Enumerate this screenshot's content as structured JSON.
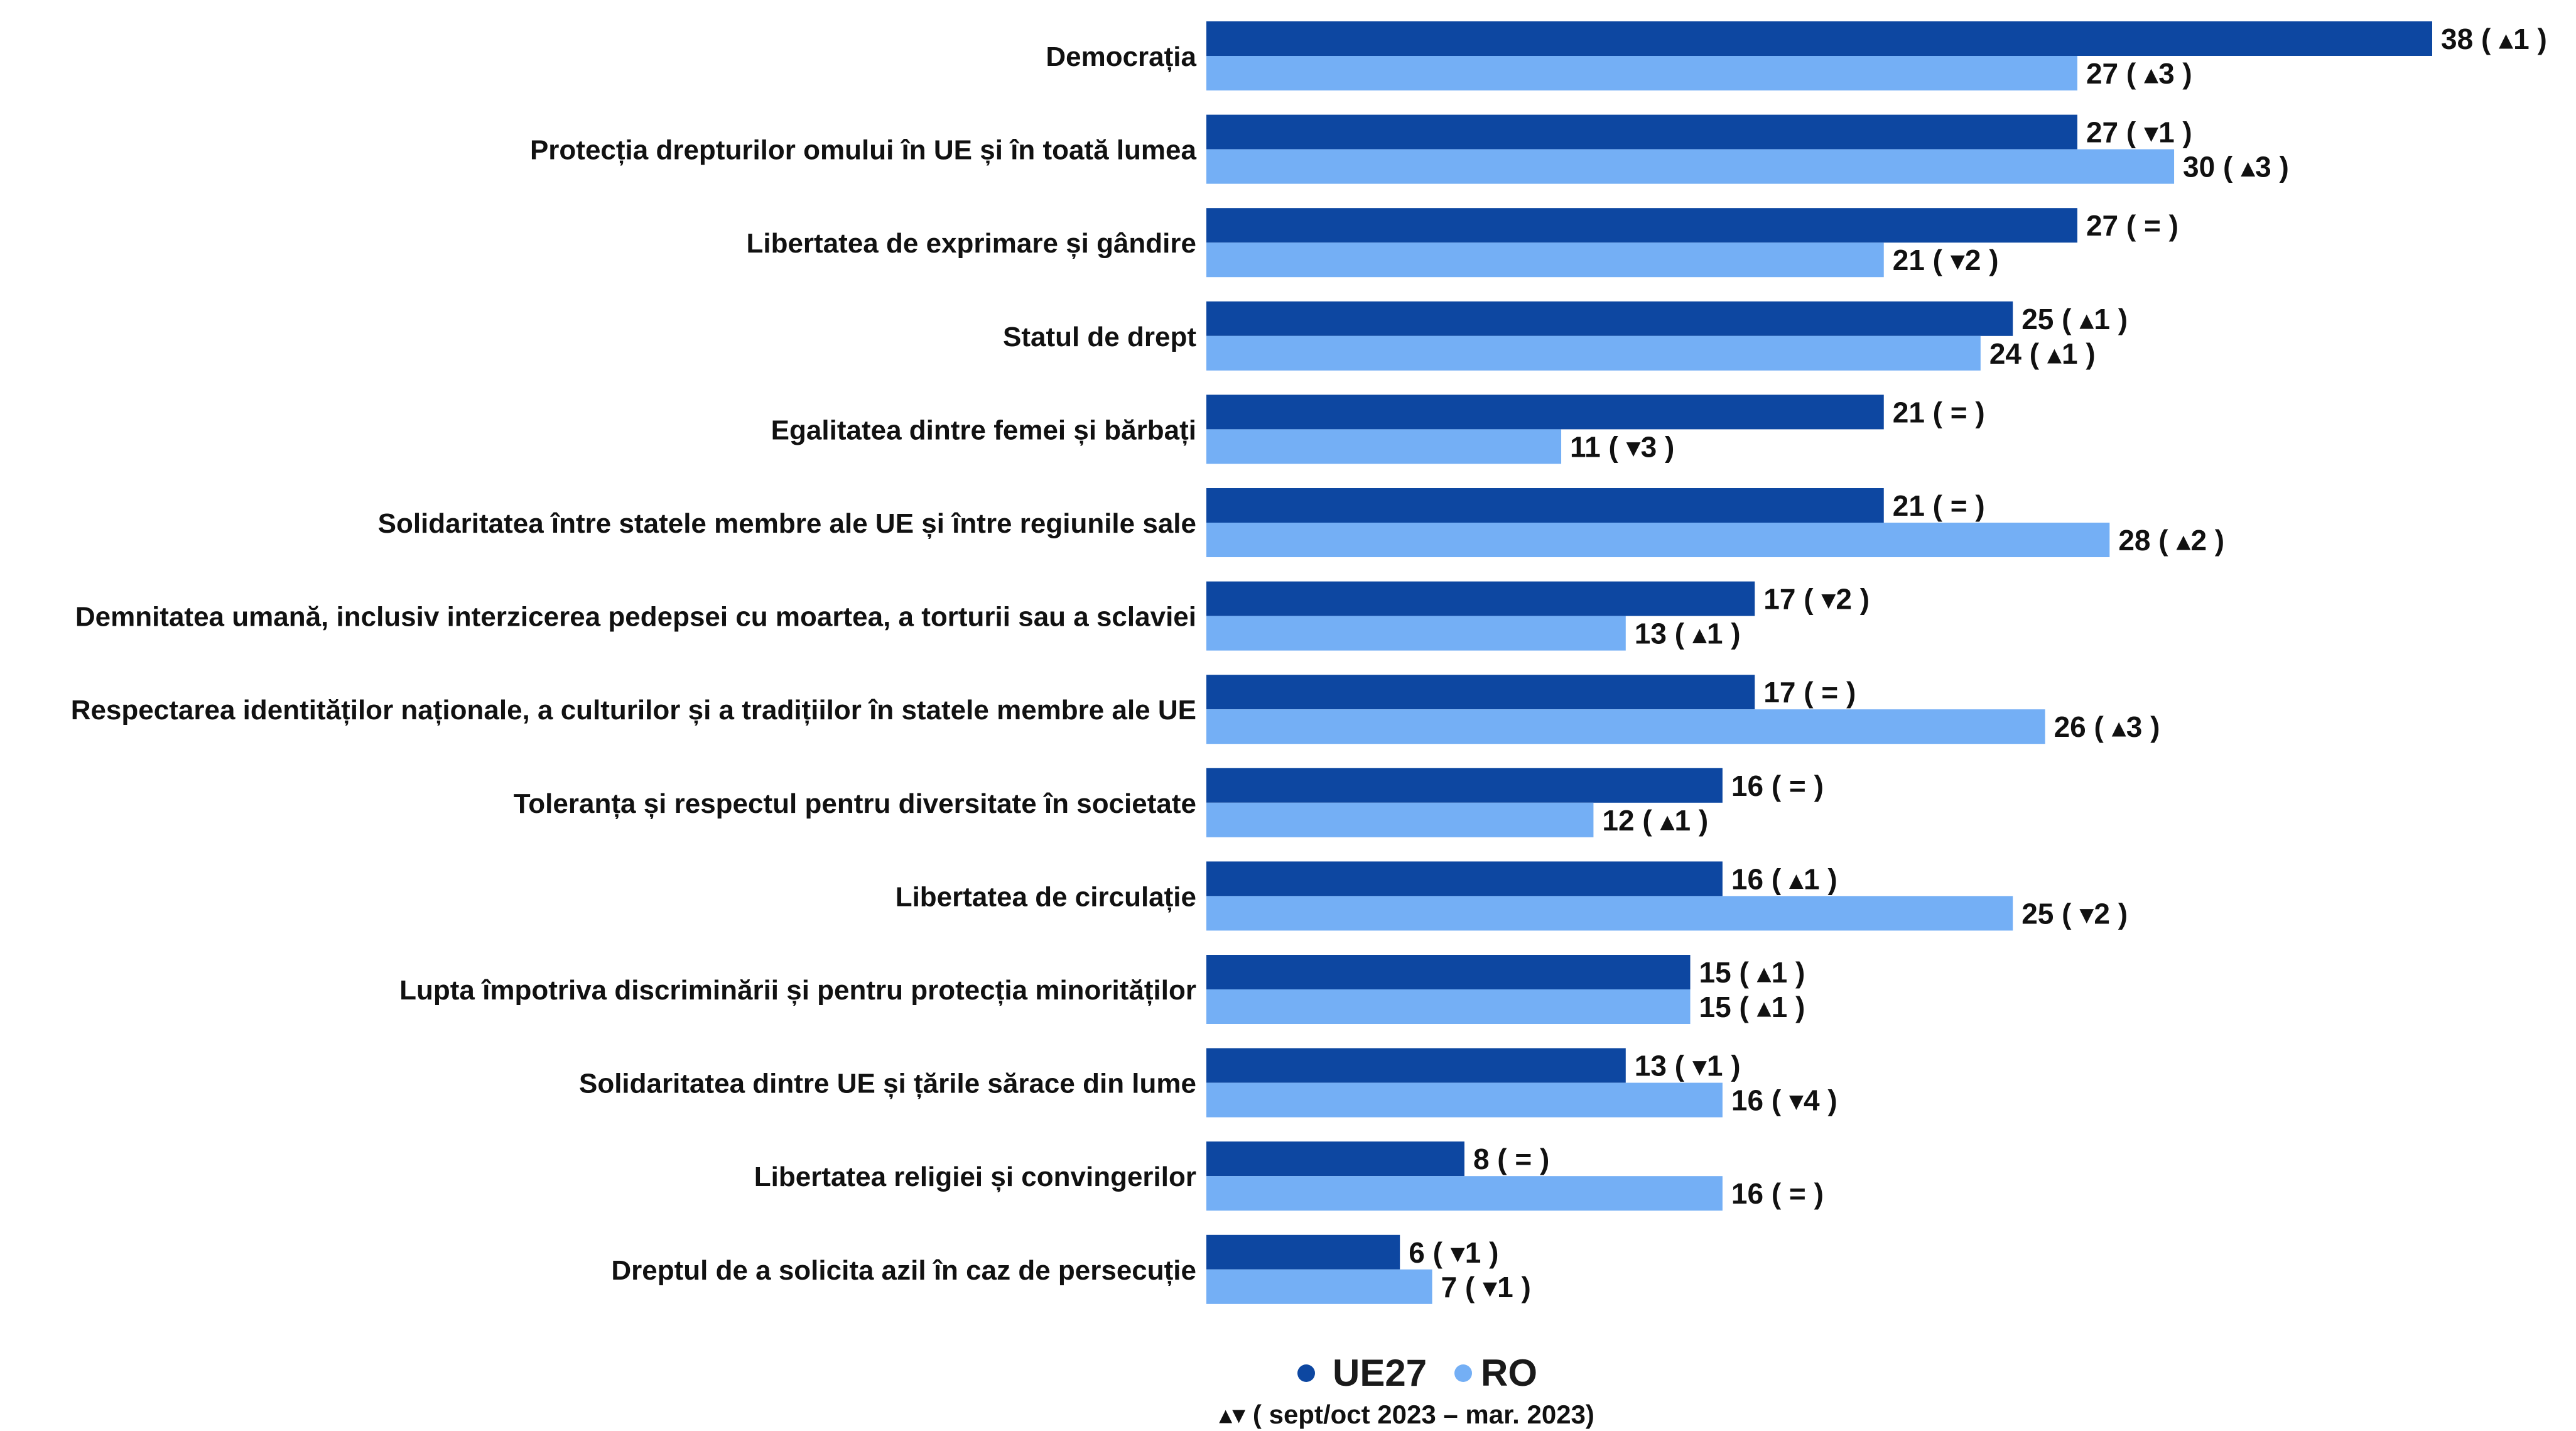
{
  "chart_data": {
    "type": "bar",
    "orientation": "horizontal",
    "categories": [
      "Democrația",
      "Protecția drepturilor omului în UE și în toată lumea",
      "Libertatea de exprimare și gândire",
      "Statul de drept",
      "Egalitatea dintre femei și bărbați",
      "Solidaritatea între statele membre ale UE și între regiunile sale",
      "Demnitatea umană, inclusiv interzicerea pedepsei cu moartea, a torturii sau a sclaviei",
      "Respectarea identităților naționale, a culturilor și a tradițiilor în statele membre ale UE",
      "Toleranța și respectul pentru diversitate în societate",
      "Libertatea de circulație",
      "Lupta împotriva discriminării și pentru protecția minorităților",
      "Solidaritatea dintre UE și țările sărace din lume",
      "Libertatea religiei și convingerilor",
      "Dreptul de a solicita azil în caz de persecuție"
    ],
    "series": [
      {
        "name": "UE27",
        "color": "#0d47a1",
        "values": [
          38,
          27,
          27,
          25,
          21,
          21,
          17,
          17,
          16,
          16,
          15,
          13,
          8,
          6
        ],
        "labels": [
          "38 ( ▴1 )",
          "27 ( ▾1 )",
          "27 ( = )",
          "25 ( ▴1 )",
          "21 ( = )",
          "21 ( = )",
          "17 ( ▾2 )",
          "17 ( = )",
          "16 ( = )",
          "16 ( ▴1 )",
          "15 ( ▴1 )",
          "13 ( ▾1 )",
          "8 ( = )",
          "6 ( ▾1 )"
        ]
      },
      {
        "name": "RO",
        "color": "#74aff5",
        "values": [
          27,
          30,
          21,
          24,
          11,
          28,
          13,
          26,
          12,
          25,
          15,
          16,
          16,
          7
        ],
        "labels": [
          "27 ( ▴3 )",
          "30 ( ▴3 )",
          "21 ( ▾2 )",
          "24 ( ▴1 )",
          "11 ( ▾3 )",
          "28 ( ▴2 )",
          "13 ( ▴1 )",
          "26 ( ▴3 )",
          "12 ( ▴1 )",
          "25 ( ▾2 )",
          "15 ( ▴1 )",
          "16 ( ▾4 )",
          "16 ( = )",
          "7 ( ▾1 )"
        ]
      }
    ],
    "xlim": [
      0,
      38
    ],
    "grid": false,
    "legend_position": "bottom",
    "note": "▴▾ ( sept/oct 2023 – mar. 2023)"
  }
}
